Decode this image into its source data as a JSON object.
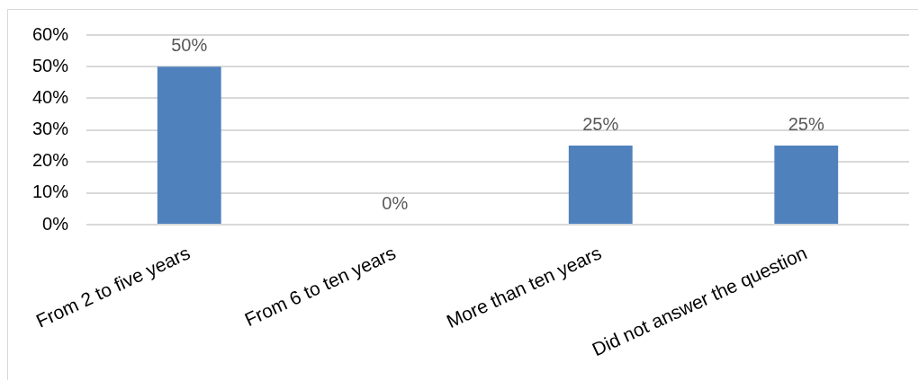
{
  "chart_data": {
    "type": "bar",
    "categories": [
      "From 2 to five years",
      "From 6 to ten years",
      "More than ten years",
      "Did not answer the question"
    ],
    "values": [
      50,
      0,
      25,
      25
    ],
    "color": "#4f81bd",
    "value_labels": [
      "50%",
      "0%",
      "25%",
      "25%"
    ],
    "ylim": [
      0,
      60
    ],
    "yticks": [
      {
        "value": 0,
        "label": "0%"
      },
      {
        "value": 10,
        "label": "10%"
      },
      {
        "value": 20,
        "label": "20%"
      },
      {
        "value": 30,
        "label": "30%"
      },
      {
        "value": 40,
        "label": "40%"
      },
      {
        "value": 50,
        "label": "50%"
      },
      {
        "value": 60,
        "label": "60%"
      }
    ],
    "grid": "y"
  }
}
